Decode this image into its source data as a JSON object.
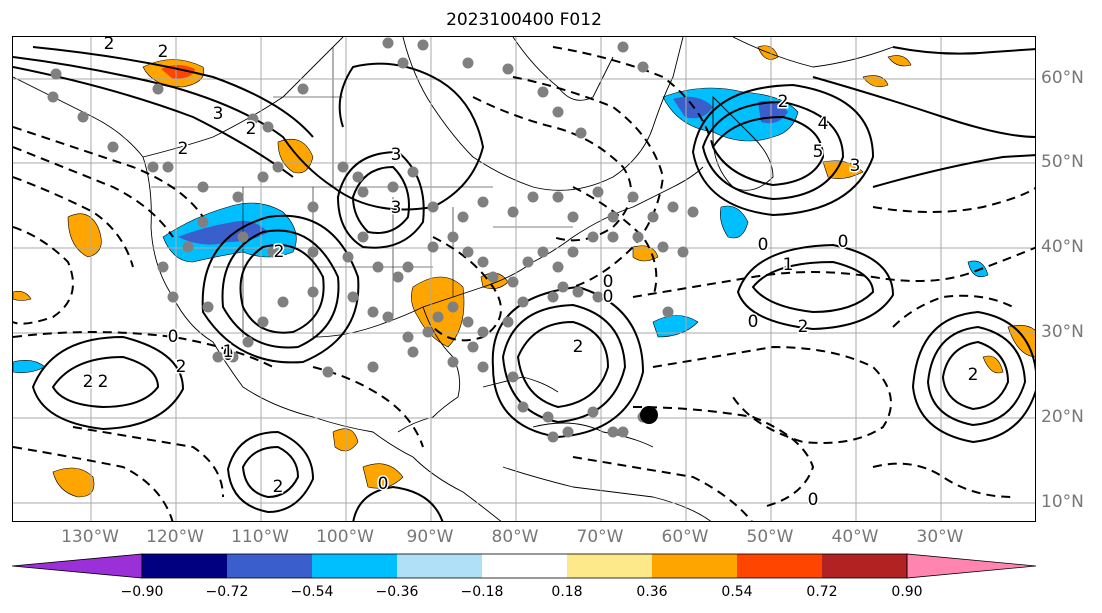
{
  "title": "2023100400 F012",
  "lon_labels": [
    "130°W",
    "120°W",
    "110°W",
    "100°W",
    "90°W",
    "80°W",
    "70°W",
    "60°W",
    "50°W",
    "40°W",
    "30°W"
  ],
  "lat_labels": [
    "60°N",
    "50°N",
    "40°N",
    "30°N",
    "20°N",
    "10°N"
  ],
  "colorbar": {
    "ticks": [
      "−0.90",
      "−0.72",
      "−0.54",
      "−0.36",
      "−0.18",
      "0.18",
      "0.36",
      "0.54",
      "0.72",
      "0.90"
    ],
    "colors": [
      "#9b30d9",
      "#000080",
      "#3a5fcd",
      "#00bfff",
      "#b0e0f8",
      "#ffffff",
      "#fde98a",
      "#ffa500",
      "#ff4500",
      "#b22222",
      "#ff85b0"
    ]
  },
  "contour_labels": [
    "2",
    "2",
    "3",
    "2",
    "2",
    "3",
    "3",
    "2",
    "0",
    "0",
    "2",
    "2",
    "5",
    "4",
    "2",
    "3",
    "1",
    "0",
    "0",
    "0",
    "2",
    "0",
    "2",
    "2",
    "2",
    "1",
    "0",
    "0",
    "0",
    "2"
  ],
  "marker": "storm-center"
}
